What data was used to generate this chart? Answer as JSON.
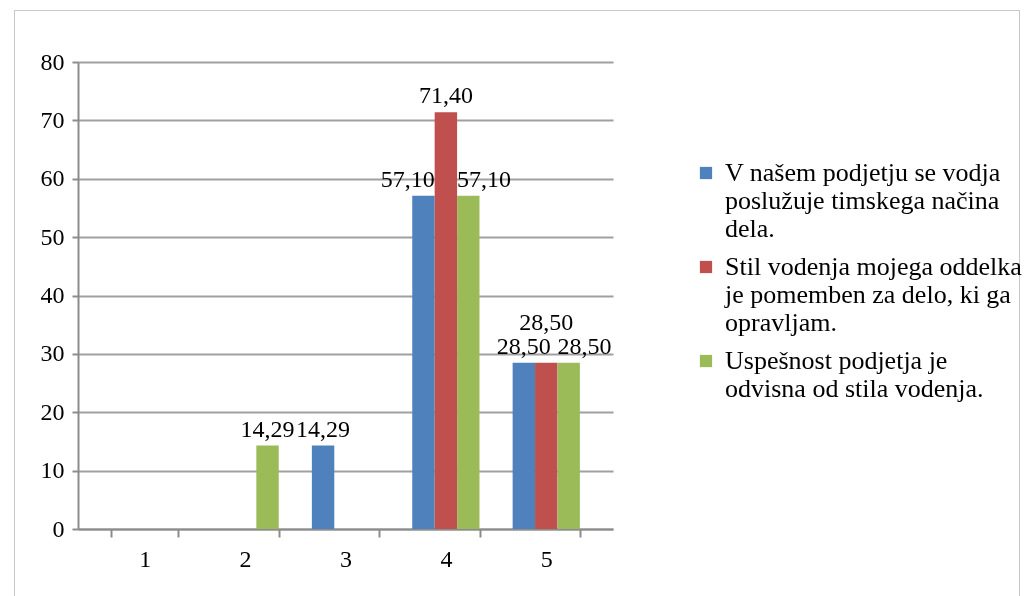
{
  "chart_data": {
    "type": "bar",
    "categories": [
      "1",
      "2",
      "3",
      "4",
      "5"
    ],
    "series": [
      {
        "name": "V našem podjetju se vodja poslužuje timskega načina dela.",
        "color": "#4f81bd",
        "values": [
          null,
          null,
          14.29,
          57.1,
          28.5
        ],
        "value_labels": [
          null,
          null,
          "14,29",
          "57,10",
          "28,50"
        ]
      },
      {
        "name": "Stil vodenja mojega oddelka je pomemben za delo, ki ga opravljam.",
        "color": "#c0504d",
        "values": [
          null,
          null,
          null,
          71.4,
          28.5
        ],
        "value_labels": [
          null,
          null,
          null,
          "71,40",
          "28,50"
        ]
      },
      {
        "name": "Uspešnost podjetja je odvisna od stila vodenja.",
        "color": "#9bbb59",
        "values": [
          null,
          14.29,
          null,
          57.1,
          28.5
        ],
        "value_labels": [
          null,
          "14,29",
          null,
          "57,10",
          "28,50"
        ]
      }
    ],
    "ylim": [
      0,
      80
    ],
    "yticks": [
      0,
      10,
      20,
      30,
      40,
      50,
      60,
      70,
      80
    ],
    "grid": "y",
    "legend": "right"
  }
}
